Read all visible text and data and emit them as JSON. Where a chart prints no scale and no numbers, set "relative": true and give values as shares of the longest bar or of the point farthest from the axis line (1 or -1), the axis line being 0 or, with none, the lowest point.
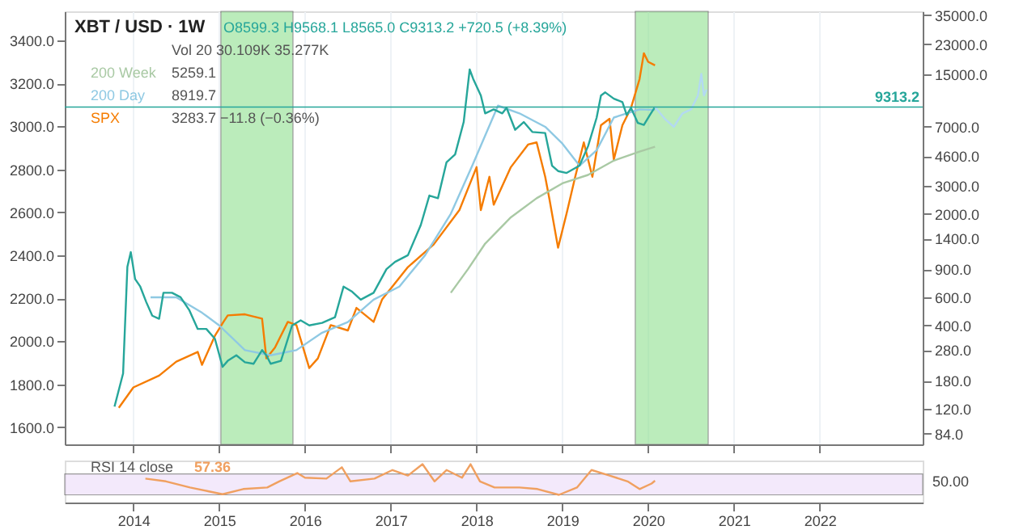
{
  "chart_data": [
    {
      "type": "line",
      "title": "XBT / USD · 1W",
      "annotations": [
        "O8599.3 H9568.1 L8565.0 C9313.2 +720.5 (+8.39%)",
        "Vol 20 30.109K 35.277K",
        "5259.1",
        "8919.7",
        "3283.7 −11.8 (−0.36%)"
      ],
      "xlim": [
        2013.2,
        2023.2
      ],
      "xticks": [
        2014,
        2015,
        2016,
        2017,
        2018,
        2019,
        2020,
        2021,
        2022
      ],
      "ylim": [
        1520,
        3535
      ],
      "yticks": [
        {
          "value": 1600,
          "label": "1600.0"
        },
        {
          "value": 1800,
          "label": "1800.0"
        },
        {
          "value": 2000,
          "label": "2000.0"
        },
        {
          "value": 2200,
          "label": "2200.0"
        },
        {
          "value": 2400,
          "label": "2400.0"
        },
        {
          "value": 2600,
          "label": "2600.0"
        },
        {
          "value": 2800,
          "label": "2800.0"
        },
        {
          "value": 3000,
          "label": "3000.0"
        },
        {
          "value": 3200,
          "label": "3200.0"
        },
        {
          "value": 3400,
          "label": "3400.0"
        }
      ],
      "y2lim": [
        72,
        37000
      ],
      "y2ticks": [
        {
          "value": 84,
          "label": "84.0"
        },
        {
          "value": 120,
          "label": "120.0"
        },
        {
          "value": 180,
          "label": "180.0"
        },
        {
          "value": 280,
          "label": "280.0"
        },
        {
          "value": 400,
          "label": "400.0"
        },
        {
          "value": 600,
          "label": "600.0"
        },
        {
          "value": 900,
          "label": "900.0"
        },
        {
          "value": 1400,
          "label": "1400.0"
        },
        {
          "value": 2000,
          "label": "2000.0"
        },
        {
          "value": 3000,
          "label": "3000.0"
        },
        {
          "value": 4600,
          "label": "4600.0"
        },
        {
          "value": 7000,
          "label": "7000.0"
        },
        {
          "value": 15000,
          "label": "15000.0"
        },
        {
          "value": 23000,
          "label": "23000.0"
        },
        {
          "value": 35000,
          "label": "35000.0"
        }
      ],
      "log": "y2",
      "grid": true,
      "tick_labels": "y",
      "legend": "top left",
      "ref_lines": [
        {
          "axis": "y2",
          "value": 9313.2,
          "label": "9313.2",
          "color": "#26a69a"
        }
      ],
      "bands": [
        {
          "axis": "x",
          "from": 2015.02,
          "to": 2015.86,
          "color": "#8fe08f"
        },
        {
          "axis": "x",
          "from": 2019.85,
          "to": 2020.7,
          "color": "#8fe08f"
        }
      ],
      "series": [
        {
          "color": "#a9c9a4",
          "name": "200 Week",
          "axis": "y2",
          "x": [
            2017.7,
            2017.9,
            2018.1,
            2018.4,
            2018.7,
            2019.0,
            2019.3,
            2019.6,
            2019.9,
            2020.08
          ],
          "values": [
            640,
            900,
            1300,
            1900,
            2500,
            3100,
            3500,
            4300,
            4900,
            5259.1
          ]
        },
        {
          "color": "#8fc9e3",
          "name": "200 Day",
          "axis": "y2",
          "x": [
            2014.2,
            2014.5,
            2014.8,
            2015.0,
            2015.3,
            2015.6,
            2015.9,
            2016.2,
            2016.5,
            2016.8,
            2017.1,
            2017.4,
            2017.7,
            2017.95,
            2018.25,
            2018.5,
            2018.8,
            2019.0,
            2019.2,
            2019.4,
            2019.6,
            2019.9,
            2020.08
          ],
          "values": [
            600,
            600,
            480,
            400,
            280,
            260,
            280,
            360,
            420,
            580,
            700,
            1100,
            2000,
            4000,
            9500,
            8500,
            7000,
            5500,
            4000,
            5000,
            8000,
            9000,
            8919.7
          ]
        },
        {
          "color": "#f57c00",
          "name": "SPX",
          "x": [
            2013.83,
            2014.0,
            2014.3,
            2014.5,
            2014.75,
            2014.8,
            2014.95,
            2015.05,
            2015.1,
            2015.3,
            2015.5,
            2015.55,
            2015.65,
            2015.8,
            2015.9,
            2016.05,
            2016.15,
            2016.3,
            2016.5,
            2016.6,
            2016.8,
            2016.9,
            2017.2,
            2017.5,
            2017.8,
            2018.0,
            2018.05,
            2018.15,
            2018.2,
            2018.4,
            2018.6,
            2018.7,
            2018.8,
            2018.85,
            2018.95,
            2019.05,
            2019.15,
            2019.25,
            2019.35,
            2019.45,
            2019.55,
            2019.6,
            2019.7,
            2019.8,
            2019.9,
            2019.95,
            2020.0,
            2020.08
          ],
          "values": [
            1690,
            1785,
            1840,
            1905,
            1950,
            1890,
            2025,
            2090,
            2120,
            2125,
            2105,
            1920,
            1970,
            2090,
            2075,
            1875,
            1920,
            2075,
            2050,
            2155,
            2090,
            2195,
            2345,
            2450,
            2610,
            2810,
            2610,
            2765,
            2635,
            2810,
            2915,
            2925,
            2765,
            2660,
            2435,
            2595,
            2765,
            2925,
            2765,
            3005,
            3035,
            2845,
            3005,
            3085,
            3220,
            3340,
            3300,
            3283.7
          ]
        },
        {
          "color": "#26a69a",
          "axis": "y2",
          "x": [
            2013.78,
            2013.88,
            2013.93,
            2013.97,
            2014.02,
            2014.08,
            2014.15,
            2014.22,
            2014.3,
            2014.35,
            2014.45,
            2014.55,
            2014.65,
            2014.75,
            2014.85,
            2014.95,
            2015.04,
            2015.1,
            2015.2,
            2015.3,
            2015.4,
            2015.5,
            2015.55,
            2015.6,
            2015.72,
            2015.85,
            2015.95,
            2016.05,
            2016.2,
            2016.35,
            2016.45,
            2016.55,
            2016.65,
            2016.8,
            2016.95,
            2017.05,
            2017.2,
            2017.35,
            2017.45,
            2017.55,
            2017.65,
            2017.75,
            2017.85,
            2017.92,
            2017.96,
            2018.05,
            2018.1,
            2018.2,
            2018.3,
            2018.35,
            2018.45,
            2018.55,
            2018.65,
            2018.8,
            2018.88,
            2018.95,
            2019.05,
            2019.2,
            2019.3,
            2019.4,
            2019.45,
            2019.5,
            2019.6,
            2019.7,
            2019.75,
            2019.8,
            2019.88,
            2019.95,
            2020.02,
            2020.08
          ],
          "values": [
            124,
            200,
            930,
            1150,
            780,
            700,
            560,
            460,
            440,
            640,
            640,
            600,
            500,
            380,
            380,
            330,
            220,
            240,
            260,
            235,
            230,
            280,
            260,
            230,
            240,
            400,
            430,
            400,
            415,
            450,
            700,
            650,
            580,
            640,
            900,
            1000,
            1100,
            1700,
            2600,
            2500,
            4200,
            4700,
            7500,
            16000,
            14000,
            11000,
            8500,
            9000,
            8500,
            9200,
            6700,
            7500,
            6500,
            6400,
            4000,
            3700,
            3600,
            4000,
            5300,
            8000,
            11000,
            11500,
            10500,
            10000,
            8300,
            9200,
            7400,
            7200,
            8300,
            9313.2
          ]
        },
        {
          "color": "#b3d9f2",
          "axis": "y2",
          "x": [
            2020.08,
            2020.2,
            2020.3,
            2020.4,
            2020.5,
            2020.58,
            2020.62,
            2020.65,
            2020.68
          ],
          "values": [
            9313.2,
            7800,
            7000,
            8500,
            9000,
            11000,
            15000,
            11000,
            12000
          ]
        }
      ]
    },
    {
      "type": "line",
      "xlim": [
        2013.2,
        2023.2
      ],
      "xticks": [
        2014,
        2015,
        2016,
        2017,
        2018,
        2019,
        2020,
        2021,
        2022
      ],
      "relative": true,
      "annotations": [
        "57.36",
        "50.00"
      ],
      "bands": [
        {
          "axis": "y",
          "from": 0,
          "to": 0.68,
          "color": "#ecdcfa"
        }
      ],
      "series": [
        {
          "name": "RSI 14 close",
          "color": "#f0a060",
          "x": [
            2014.14,
            2014.38,
            2014.66,
            2014.87,
            2015.04,
            2015.28,
            2015.56,
            2015.7,
            2015.91,
            2016.0,
            2016.25,
            2016.43,
            2016.53,
            2016.81,
            2017.02,
            2017.2,
            2017.37,
            2017.51,
            2017.65,
            2017.83,
            2017.93,
            2018.04,
            2018.21,
            2018.5,
            2018.71,
            2018.96,
            2019.17,
            2019.34,
            2019.55,
            2019.76,
            2019.9,
            2020.04,
            2020.08
          ],
          "values": [
            0.53,
            0.44,
            0.24,
            0.12,
            0.02,
            0.19,
            0.24,
            0.44,
            0.71,
            0.56,
            0.53,
            0.9,
            0.44,
            0.53,
            0.81,
            0.63,
            1,
            0.44,
            0.81,
            0.56,
            1,
            0.44,
            0.24,
            0.24,
            0.19,
            0,
            0.24,
            0.81,
            0.63,
            0.44,
            0.19,
            0.37,
            0.46
          ]
        }
      ]
    }
  ]
}
